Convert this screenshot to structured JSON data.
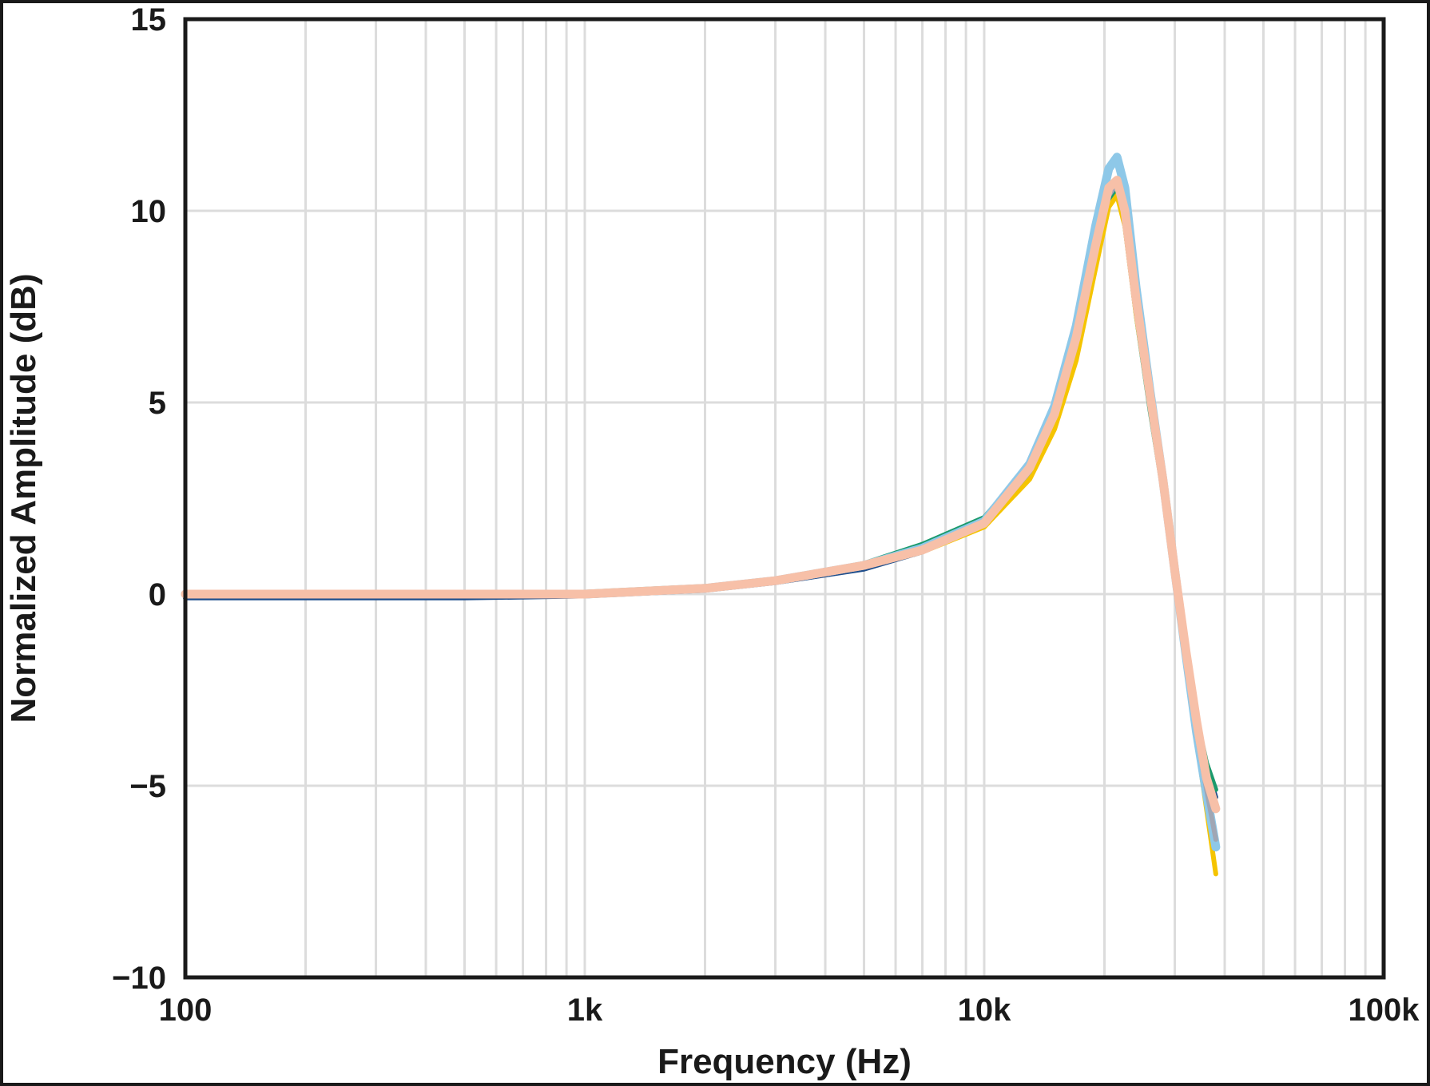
{
  "chart_data": {
    "type": "line",
    "xlabel": "Frequency (Hz)",
    "ylabel": "Normalized Amplitude (dB)",
    "x_scale": "log",
    "xlim": [
      100,
      100000
    ],
    "ylim": [
      -10,
      15
    ],
    "x_ticks": [
      100,
      1000,
      10000,
      100000
    ],
    "x_tick_labels": [
      "100",
      "1k",
      "10k",
      "100k"
    ],
    "y_ticks": [
      15,
      10,
      5,
      0,
      -5,
      -10
    ],
    "y_tick_labels": [
      "15",
      "10",
      "5",
      "0",
      "−5",
      "−10"
    ],
    "grid": true,
    "series": [
      {
        "color": "#1f4e8c",
        "x": [
          100,
          500,
          1000,
          2000,
          3000,
          5000,
          7000,
          10000,
          13000,
          15000,
          17000,
          19000,
          20500,
          21500,
          22500,
          24000,
          26000,
          28000,
          30000,
          32000,
          34000,
          36000,
          38000
        ],
        "y": [
          -0.1,
          -0.1,
          -0.05,
          0.1,
          0.3,
          0.65,
          1.1,
          1.8,
          3.2,
          4.6,
          6.4,
          8.8,
          10.4,
          10.6,
          9.8,
          7.5,
          5.0,
          2.8,
          0.5,
          -1.5,
          -3.2,
          -4.5,
          -5.3
        ]
      },
      {
        "color": "#1a9a6c",
        "x": [
          100,
          500,
          1000,
          2000,
          3000,
          5000,
          7000,
          10000,
          13000,
          15000,
          17000,
          19000,
          20500,
          21500,
          22500,
          24000,
          26000,
          28000,
          30000,
          32000,
          34000,
          36000,
          38000
        ],
        "y": [
          0.0,
          0.0,
          0.0,
          0.15,
          0.35,
          0.8,
          1.3,
          2.0,
          3.4,
          4.7,
          6.5,
          8.9,
          10.3,
          10.5,
          9.6,
          7.3,
          4.8,
          2.7,
          0.5,
          -1.5,
          -3.2,
          -4.4,
          -5.1
        ]
      },
      {
        "color": "#f5c400",
        "x": [
          100,
          500,
          1000,
          2000,
          3000,
          5000,
          7000,
          10000,
          13000,
          15000,
          17000,
          19000,
          20500,
          21500,
          22500,
          24000,
          26000,
          28000,
          30000,
          32000,
          34000,
          36000,
          38000
        ],
        "y": [
          0.0,
          0.0,
          0.05,
          0.2,
          0.35,
          0.7,
          1.1,
          1.75,
          3.0,
          4.3,
          6.1,
          8.5,
          10.1,
          10.4,
          9.6,
          7.3,
          4.9,
          2.8,
          0.5,
          -1.7,
          -3.8,
          -5.6,
          -7.3
        ]
      },
      {
        "color": "#8ec8e8",
        "x": [
          100,
          500,
          1000,
          2000,
          3000,
          5000,
          7000,
          10000,
          13000,
          15000,
          17000,
          19000,
          20500,
          21500,
          22500,
          24000,
          26000,
          28000,
          30000,
          32000,
          34000,
          36000,
          38000
        ],
        "y": [
          0.0,
          0.0,
          0.0,
          0.15,
          0.35,
          0.75,
          1.2,
          1.9,
          3.4,
          4.9,
          7.0,
          9.6,
          11.1,
          11.4,
          10.6,
          8.0,
          5.3,
          3.0,
          0.6,
          -1.6,
          -3.6,
          -5.2,
          -6.6
        ]
      },
      {
        "color": "#a0a6b4",
        "x": [
          100,
          500,
          1000,
          2000,
          3000,
          5000,
          7000,
          10000,
          13000,
          15000,
          17000,
          19000,
          20500,
          21500,
          22500,
          24000,
          26000,
          28000,
          30000,
          32000,
          34000,
          36000,
          38000
        ],
        "y": [
          0.0,
          0.0,
          0.0,
          0.12,
          0.3,
          0.7,
          1.1,
          1.8,
          3.2,
          4.6,
          6.5,
          8.9,
          10.4,
          10.7,
          9.9,
          7.6,
          5.1,
          2.9,
          0.4,
          -1.8,
          -3.6,
          -5.1,
          -6.4
        ]
      },
      {
        "color": "#f7c0a8",
        "x": [
          100,
          500,
          1000,
          2000,
          3000,
          5000,
          7000,
          10000,
          13000,
          15000,
          17000,
          19000,
          20500,
          21500,
          22500,
          24000,
          26000,
          28000,
          30000,
          32000,
          34000,
          36000,
          38000
        ],
        "y": [
          0.0,
          0.0,
          0.0,
          0.15,
          0.35,
          0.75,
          1.15,
          1.85,
          3.3,
          4.7,
          6.7,
          9.1,
          10.6,
          10.8,
          10.0,
          7.7,
          5.2,
          3.0,
          0.6,
          -1.5,
          -3.3,
          -4.8,
          -5.6
        ]
      }
    ]
  }
}
